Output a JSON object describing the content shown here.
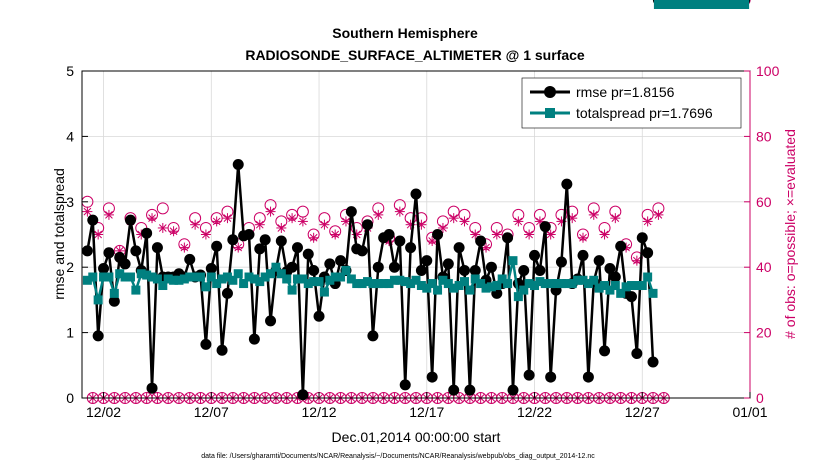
{
  "chart_data": {
    "type": "line",
    "title": "Southern Hemisphere",
    "subtitle": "RADIOSONDE_SURFACE_ALTIMETER @ 1 surface",
    "xlabel": "Dec.01,2014 00:00:00 start",
    "ylabel_left": "rmse and totalspread",
    "ylabel_right": "# of obs: o=possible; ×=evaluated",
    "x_ticks": [
      "12/02",
      "12/07",
      "12/12",
      "12/17",
      "12/22",
      "12/27",
      "01/01"
    ],
    "x_tick_days": [
      1,
      6,
      11,
      16,
      21,
      26,
      31
    ],
    "x_range_days": [
      0,
      31
    ],
    "ylim_left": [
      0,
      5
    ],
    "y_ticks_left": [
      "0",
      "1",
      "2",
      "3",
      "4",
      "5"
    ],
    "ylim_right": [
      0,
      100
    ],
    "y_ticks_right": [
      "0",
      "20",
      "40",
      "60",
      "80",
      "100"
    ],
    "legend_position": "top-right",
    "footnote": "data file: /Users/gharamti/Documents/NCAR/Reanalysis/~/Documents/NCAR/Reanalysis/webpub/obs_diag_output_2014-12.nc",
    "x_days": [
      0.25,
      0.5,
      0.75,
      1.0,
      1.25,
      1.5,
      1.75,
      2.0,
      2.25,
      2.5,
      2.75,
      3.0,
      3.25,
      3.5,
      3.75,
      4.0,
      4.25,
      4.5,
      4.75,
      5.0,
      5.25,
      5.5,
      5.75,
      6.0,
      6.25,
      6.5,
      6.75,
      7.0,
      7.25,
      7.5,
      7.75,
      8.0,
      8.25,
      8.5,
      8.75,
      9.0,
      9.25,
      9.5,
      9.75,
      10.0,
      10.25,
      10.5,
      10.75,
      11.0,
      11.25,
      11.5,
      11.75,
      12.0,
      12.25,
      12.5,
      12.75,
      13.0,
      13.25,
      13.5,
      13.75,
      14.0,
      14.25,
      14.5,
      14.75,
      15.0,
      15.25,
      15.5,
      15.75,
      16.0,
      16.25,
      16.5,
      16.75,
      17.0,
      17.25,
      17.5,
      17.75,
      18.0,
      18.25,
      18.5,
      18.75,
      19.0,
      19.25,
      19.5,
      19.75,
      20.0,
      20.25,
      20.5,
      20.75,
      21.0,
      21.25,
      21.5,
      21.75,
      22.0,
      22.25,
      22.5,
      22.75,
      23.0,
      23.25,
      23.5,
      23.75,
      24.0,
      24.25,
      24.5,
      24.75,
      25.0,
      25.25,
      25.5,
      25.75,
      26.0,
      26.25,
      26.5,
      26.75,
      27.0,
      27.25,
      27.5,
      27.75,
      28.0,
      28.25,
      28.5,
      28.75,
      29.0,
      29.25,
      29.5,
      29.75,
      30.0,
      30.25,
      30.5,
      30.75
    ],
    "series": [
      {
        "name": "rmse pr=1.8156",
        "color": "#000000",
        "marker": "circle",
        "values": [
          2.25,
          2.72,
          0.95,
          1.98,
          2.22,
          1.48,
          2.15,
          2.05,
          2.72,
          2.25,
          1.95,
          2.52,
          0.15,
          2.3,
          1.85,
          1.85,
          1.85,
          1.9,
          1.85,
          2.12,
          1.85,
          1.88,
          0.82,
          1.98,
          2.32,
          0.73,
          1.6,
          2.42,
          3.57,
          2.48,
          2.5,
          0.9,
          2.28,
          2.42,
          1.18,
          1.95,
          2.4,
          1.93,
          2.0,
          2.3,
          0.05,
          2.2,
          1.95,
          1.25,
          1.85,
          2.05,
          1.75,
          2.1,
          1.95,
          2.85,
          2.28,
          2.25,
          2.65,
          0.95,
          2.0,
          2.45,
          2.5,
          2.0,
          2.4,
          0.2,
          2.3,
          3.12,
          1.95,
          2.1,
          0.32,
          2.5,
          1.85,
          2.05,
          0.12,
          2.3,
          1.95,
          0.12,
          1.95,
          2.4,
          1.8,
          2.0,
          1.6,
          1.75,
          2.45,
          0.12,
          1.75,
          1.95,
          0.35,
          2.18,
          1.95,
          2.62,
          0.32,
          1.65,
          2.08,
          3.27,
          1.75,
          1.82,
          2.18,
          0.32,
          1.78,
          2.1,
          0.72,
          1.98,
          1.85,
          2.32,
          1.6,
          1.55,
          0.68,
          2.45,
          2.22,
          0.55
        ]
      },
      {
        "name": "totalspread pr=1.7696",
        "color": "#008080",
        "marker": "square",
        "values": [
          1.8,
          1.85,
          1.5,
          1.85,
          1.85,
          1.6,
          1.9,
          1.85,
          1.85,
          1.65,
          1.9,
          1.88,
          1.85,
          1.82,
          1.72,
          1.82,
          1.8,
          1.8,
          1.82,
          1.85,
          1.85,
          1.85,
          1.7,
          1.85,
          1.75,
          1.82,
          1.85,
          1.8,
          1.9,
          1.75,
          1.85,
          1.82,
          1.78,
          1.85,
          1.9,
          2.0,
          1.9,
          1.82,
          1.65,
          1.82,
          1.82,
          1.75,
          1.78,
          1.78,
          1.62,
          1.8,
          1.85,
          1.85,
          1.95,
          1.82,
          1.75,
          1.75,
          1.78,
          1.75,
          1.75,
          1.75,
          1.75,
          1.8,
          1.8,
          1.78,
          1.75,
          1.8,
          1.72,
          1.68,
          1.75,
          1.65,
          1.8,
          1.75,
          1.68,
          1.72,
          1.78,
          1.65,
          1.82,
          1.75,
          1.68,
          1.7,
          1.72,
          1.82,
          1.75,
          2.1,
          1.55,
          1.65,
          1.75,
          1.72,
          1.78,
          1.75,
          1.75,
          1.75,
          1.75,
          1.75,
          1.75,
          1.8,
          1.8,
          1.75,
          1.8,
          1.68,
          1.72,
          1.65,
          1.72,
          1.6,
          1.7,
          1.72,
          1.72,
          1.72,
          1.85,
          1.6
        ]
      },
      {
        "name": "possible",
        "color": "#cc0066",
        "marker": "open-circle",
        "axis": "right",
        "values": [
          60,
          0,
          52,
          0,
          58,
          0,
          45,
          0,
          55,
          0,
          52,
          0,
          56,
          0,
          58,
          0,
          52,
          0,
          47,
          0,
          55,
          0,
          52,
          0,
          55,
          0,
          57,
          0,
          47,
          0,
          52,
          0,
          55,
          0,
          59,
          0,
          54,
          0,
          56,
          0,
          57,
          0,
          50,
          0,
          55,
          0,
          51,
          0,
          56,
          0,
          52,
          0,
          54,
          0,
          58,
          0,
          49,
          0,
          59,
          0,
          55,
          0,
          55,
          0,
          49,
          0,
          54,
          0,
          57,
          0,
          56,
          0,
          52,
          0,
          47,
          0,
          52,
          0,
          50,
          0,
          56,
          0,
          52,
          0,
          56,
          0,
          52,
          0,
          56,
          0,
          57,
          0,
          50,
          0,
          58,
          0,
          52,
          0,
          57,
          0,
          47,
          0,
          43,
          0,
          56,
          0,
          58,
          0
        ]
      },
      {
        "name": "evaluated",
        "color": "#cc0066",
        "marker": "asterisk",
        "axis": "right",
        "values": [
          57,
          0,
          50,
          0,
          56,
          0,
          45,
          0,
          54,
          0,
          50,
          0,
          55,
          0,
          52,
          0,
          51,
          0,
          46,
          0,
          53,
          0,
          50,
          0,
          54,
          0,
          55,
          0,
          46,
          0,
          50,
          0,
          53,
          0,
          57,
          0,
          52,
          0,
          55,
          0,
          54,
          0,
          49,
          0,
          53,
          0,
          50,
          0,
          54,
          0,
          50,
          0,
          52,
          0,
          56,
          0,
          48,
          0,
          57,
          0,
          53,
          0,
          53,
          0,
          48,
          0,
          52,
          0,
          55,
          0,
          54,
          0,
          50,
          0,
          46,
          0,
          50,
          0,
          49,
          0,
          54,
          0,
          50,
          0,
          54,
          0,
          50,
          0,
          54,
          0,
          55,
          0,
          49,
          0,
          56,
          0,
          50,
          0,
          55,
          0,
          46,
          0,
          42,
          0,
          54,
          0,
          56,
          0
        ]
      }
    ]
  }
}
